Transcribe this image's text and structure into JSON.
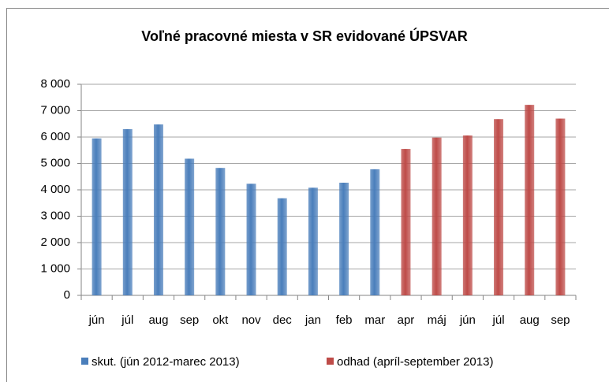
{
  "chart_data": {
    "type": "bar",
    "title": "Voľné pracovné miesta v SR evidované ÚPSVAR",
    "categories": [
      "jún",
      "júl",
      "aug",
      "sep",
      "okt",
      "nov",
      "dec",
      "jan",
      "feb",
      "mar",
      "apr",
      "máj",
      "jún",
      "júl",
      "aug",
      "sep"
    ],
    "series": [
      {
        "name": "skut. (jún 2012-marec 2013)",
        "color": "#4a7ebb",
        "values": [
          5950,
          6300,
          6480,
          5180,
          4830,
          4230,
          3680,
          4080,
          4270,
          4780,
          null,
          null,
          null,
          null,
          null,
          null
        ]
      },
      {
        "name": "odhad (apríl-september 2013)",
        "color": "#be4b48",
        "values": [
          null,
          null,
          null,
          null,
          null,
          null,
          null,
          null,
          null,
          null,
          5550,
          5980,
          6060,
          6680,
          7220,
          6700
        ]
      }
    ],
    "ylim": [
      0,
      8000
    ],
    "yticks": [
      0,
      {
        "value": 1000,
        "label": "1 000"
      },
      {
        "value": 2000,
        "label": "2 000"
      },
      {
        "value": 3000,
        "label": "3 000"
      },
      {
        "value": 4000,
        "label": "4 000"
      },
      {
        "value": 5000,
        "label": "5 000"
      },
      {
        "value": 6000,
        "label": "6 000"
      },
      {
        "value": 7000,
        "label": "7 000"
      },
      {
        "value": 8000,
        "label": "8 000"
      }
    ],
    "grid": true,
    "legend": "bottom"
  }
}
